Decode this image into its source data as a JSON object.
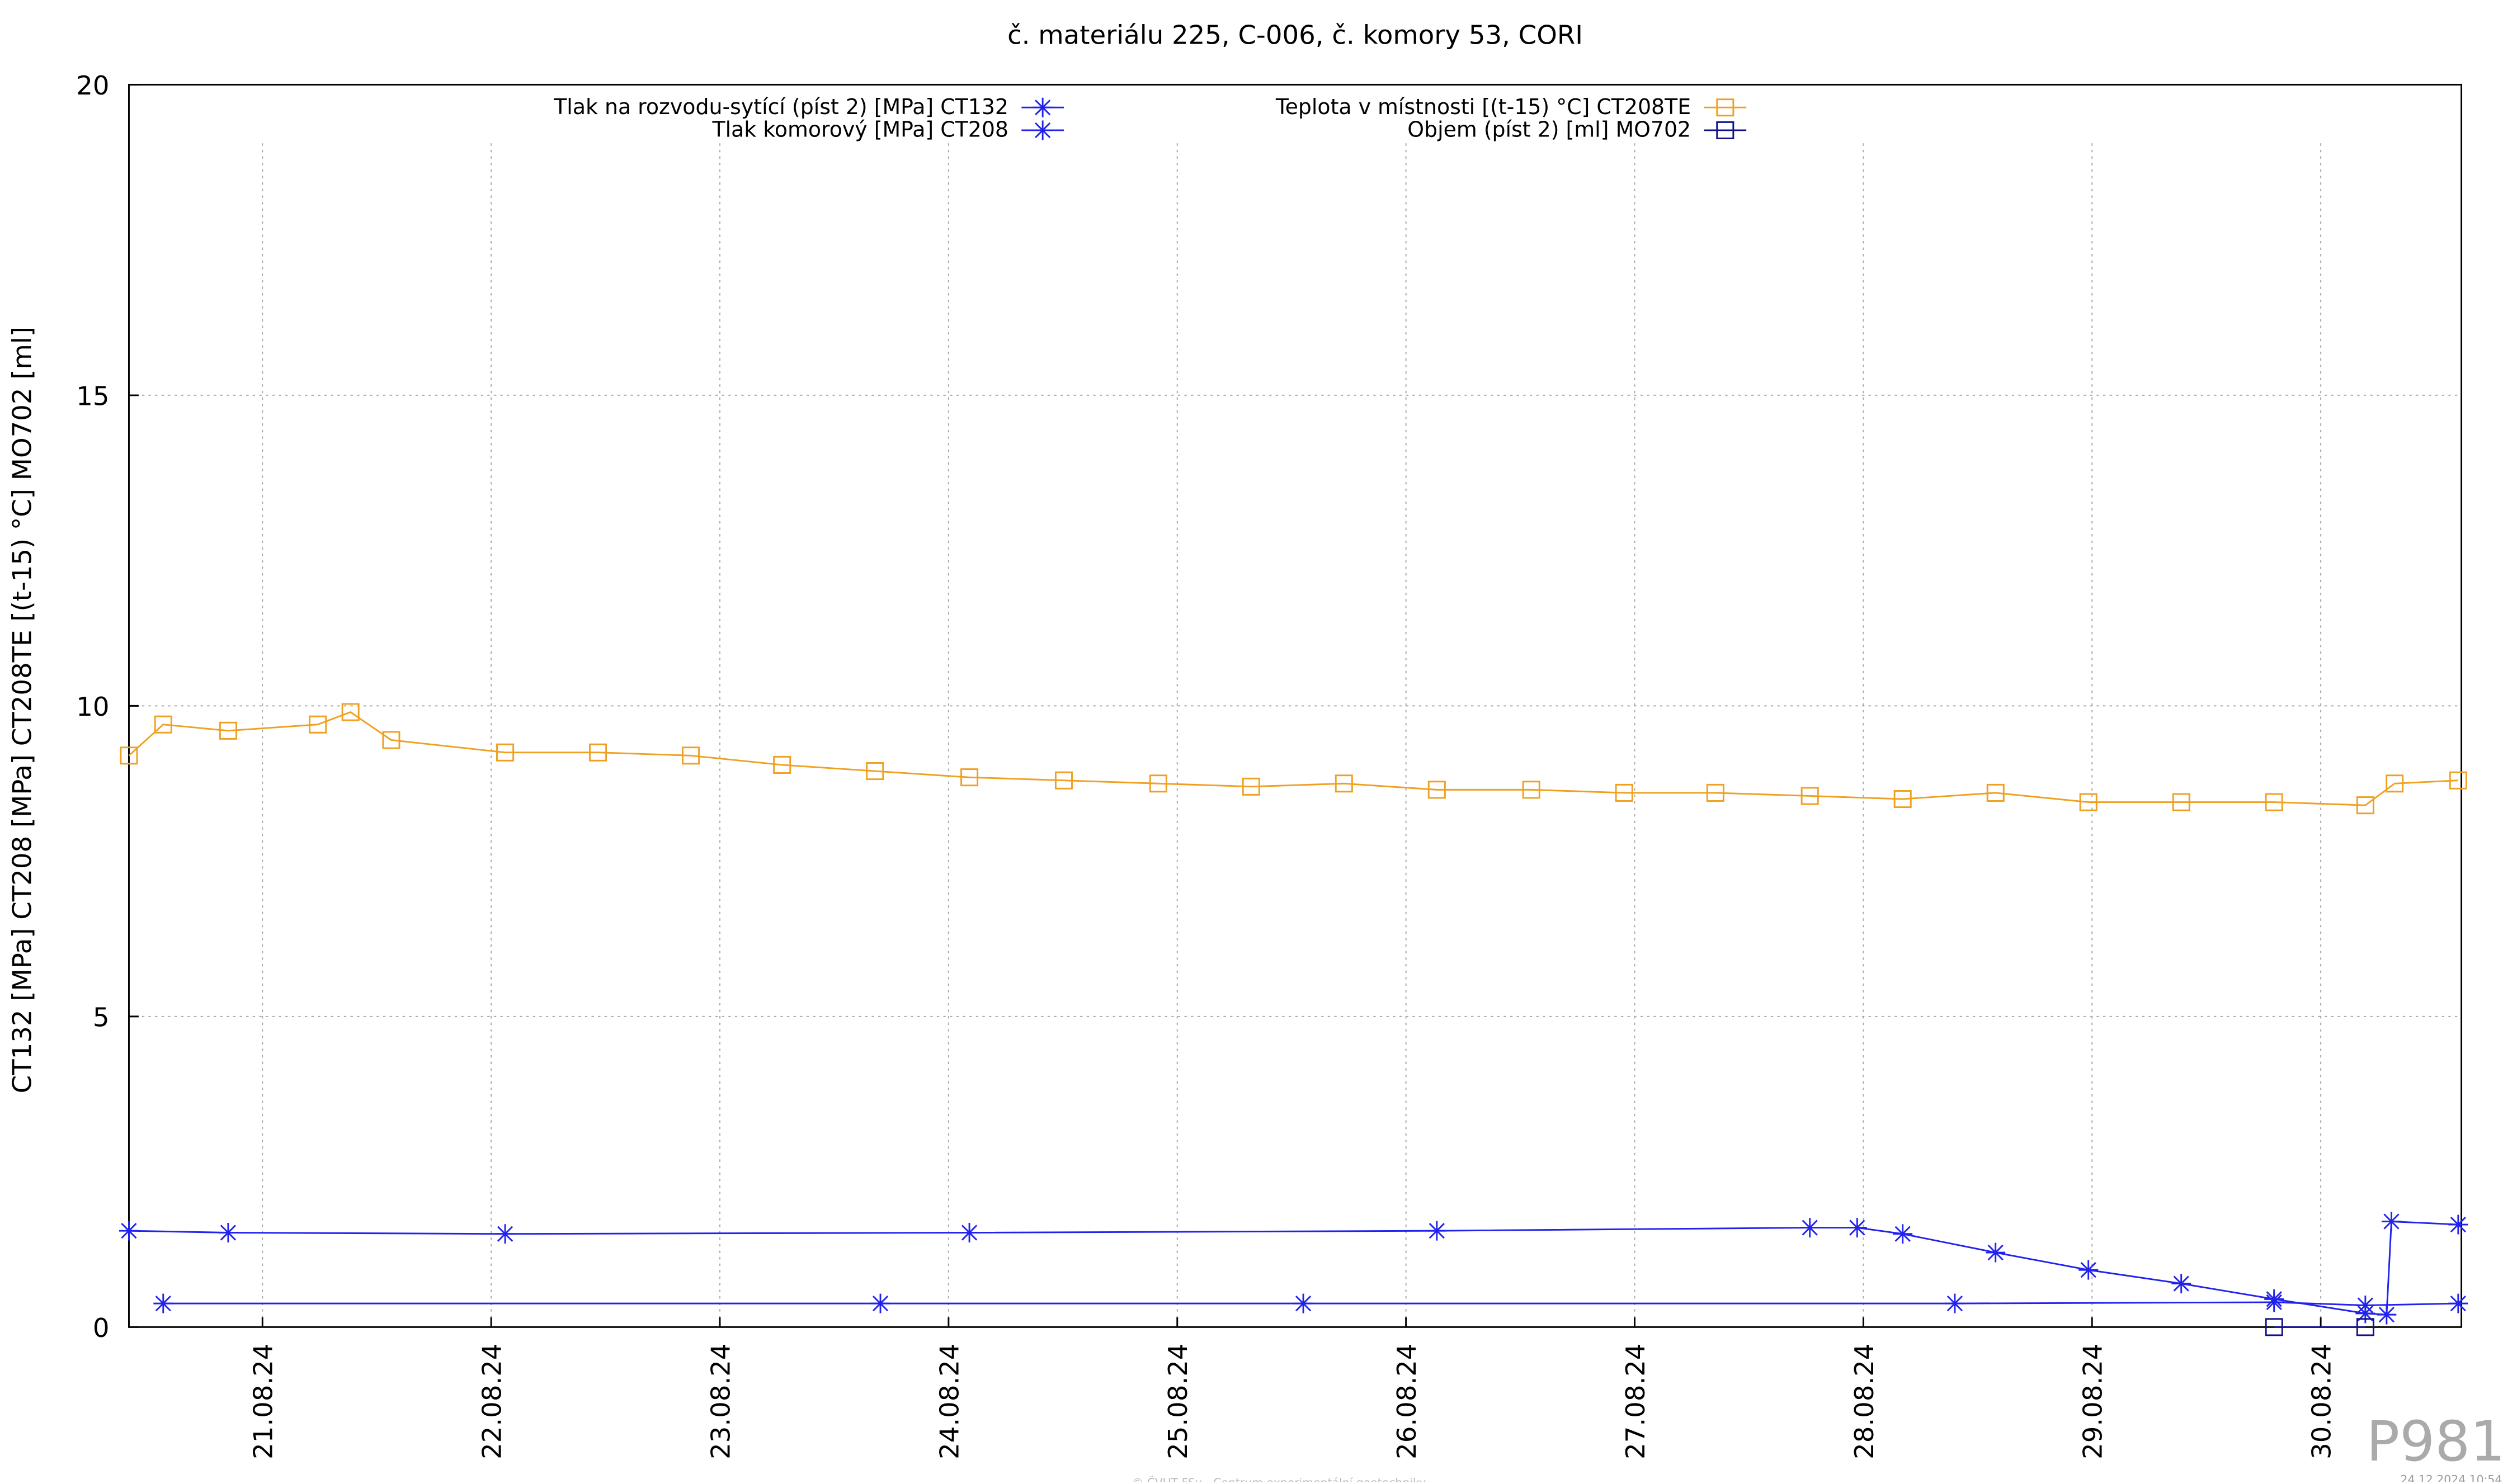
{
  "chart_data": {
    "type": "line",
    "title": "č. materiálu 225, C-006, č. komory 53, CORI",
    "ylabel": "CT132 [MPa] CT208 [MPa] CT208TE [(t-15) °C] MO702 [ml]",
    "watermark": "P981",
    "footer": "© ČVUT FSv - Centrum experimentální geotechniky",
    "timestamp": "24.12.2024 10:54",
    "xlim": [
      20.416,
      30.615
    ],
    "xticks": [
      {
        "value": 21,
        "label": "21.08.24"
      },
      {
        "value": 22,
        "label": "22.08.24"
      },
      {
        "value": 23,
        "label": "23.08.24"
      },
      {
        "value": 24,
        "label": "24.08.24"
      },
      {
        "value": 25,
        "label": "25.08.24"
      },
      {
        "value": 26,
        "label": "26.08.24"
      },
      {
        "value": 27,
        "label": "27.08.24"
      },
      {
        "value": 28,
        "label": "28.08.24"
      },
      {
        "value": 29,
        "label": "29.08.24"
      },
      {
        "value": 30,
        "label": "30.08.24"
      }
    ],
    "ylim": [
      0,
      20
    ],
    "yticks": [
      0,
      5,
      10,
      15,
      20
    ],
    "grid": true,
    "series": [
      {
        "name": "Tlak na rozvodu-sytící (píst 2) [MPa] CT132",
        "color": "#2222ee",
        "marker": "star",
        "x": [
          20.416,
          20.85,
          22.061,
          24.091,
          26.135,
          27.766,
          27.973,
          28.172,
          28.578,
          28.984,
          29.39,
          29.796,
          30.195,
          30.288,
          30.309,
          30.601
        ],
        "values": [
          1.55,
          1.52,
          1.5,
          1.52,
          1.55,
          1.6,
          1.6,
          1.5,
          1.2,
          0.92,
          0.7,
          0.45,
          0.22,
          0.2,
          1.7,
          1.65
        ]
      },
      {
        "name": "Tlak komorový [MPa] CT208",
        "color": "#2222ee",
        "marker": "star",
        "x": [
          20.566,
          23.702,
          25.551,
          28.4,
          29.796,
          30.195,
          30.601
        ],
        "values": [
          0.38,
          0.38,
          0.38,
          0.38,
          0.4,
          0.35,
          0.38
        ]
      },
      {
        "name": "Teplota v místnosti [(t-15) °C] CT208TE",
        "color": "#f0a020",
        "marker": "square",
        "x": [
          20.416,
          20.566,
          20.85,
          21.242,
          21.385,
          21.563,
          22.061,
          22.467,
          22.873,
          23.272,
          23.678,
          24.091,
          24.504,
          24.917,
          25.323,
          25.729,
          26.135,
          26.548,
          26.954,
          27.353,
          27.766,
          28.172,
          28.578,
          28.984,
          29.39,
          29.796,
          30.195,
          30.323,
          30.601
        ],
        "values": [
          9.2,
          9.7,
          9.6,
          9.7,
          9.9,
          9.45,
          9.25,
          9.25,
          9.2,
          9.05,
          8.95,
          8.85,
          8.8,
          8.75,
          8.7,
          8.75,
          8.65,
          8.65,
          8.6,
          8.6,
          8.55,
          8.5,
          8.6,
          8.45,
          8.45,
          8.45,
          8.4,
          8.75,
          8.8
        ]
      },
      {
        "name": "Objem (píst 2) [ml] MO702",
        "color": "#10108a",
        "marker": "square",
        "x": [
          29.796,
          30.195
        ],
        "values": [
          0,
          0
        ]
      }
    ]
  }
}
